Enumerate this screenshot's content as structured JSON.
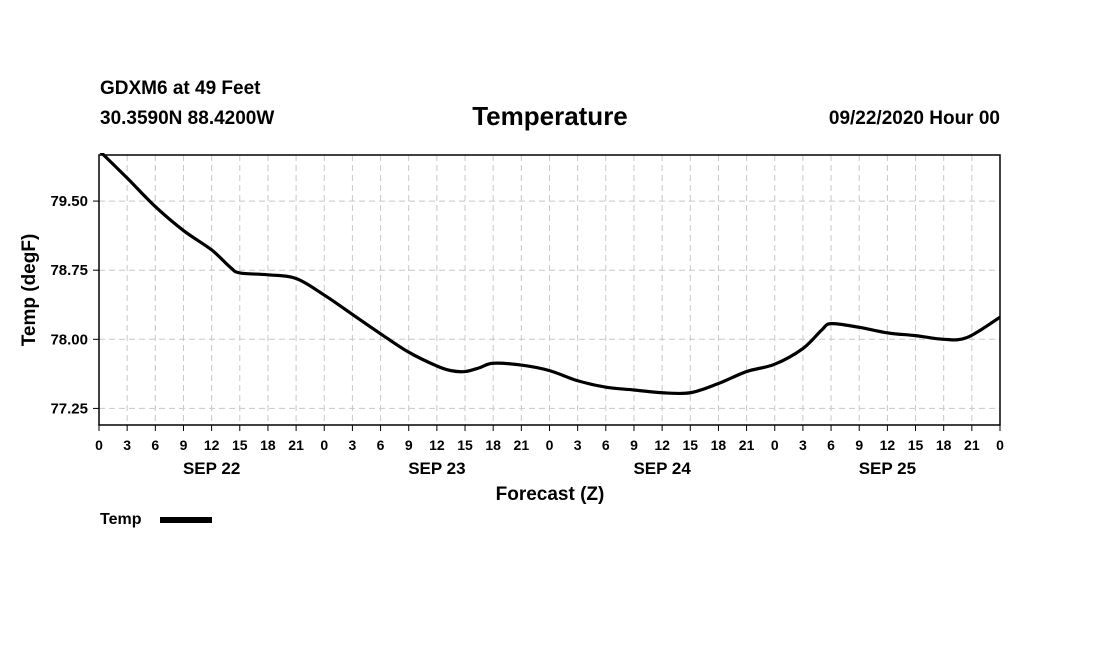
{
  "header": {
    "station": "GDXM6 at 49 Feet",
    "coords": "30.3590N 88.4200W",
    "title": "Temperature",
    "timestamp": "09/22/2020 Hour 00"
  },
  "chart_data": {
    "type": "line",
    "title": "Temperature",
    "xlabel": "Forecast (Z)",
    "ylabel": "Temp (degF)",
    "xlim": [
      0,
      96
    ],
    "ylim": [
      77.07,
      80.0
    ],
    "yticks": [
      79.5,
      78.75,
      78.0,
      77.25
    ],
    "ytick_labels": [
      "79.50",
      "78.75",
      "78.00",
      "77.25"
    ],
    "xticks": [
      0,
      3,
      6,
      9,
      12,
      15,
      18,
      21,
      24,
      27,
      30,
      33,
      36,
      39,
      42,
      45,
      48,
      51,
      54,
      57,
      60,
      63,
      66,
      69,
      72,
      75,
      78,
      81,
      84,
      87,
      90,
      93,
      96
    ],
    "xtick_labels": [
      "0",
      "3",
      "6",
      "9",
      "12",
      "15",
      "18",
      "21",
      "0",
      "3",
      "6",
      "9",
      "12",
      "15",
      "18",
      "21",
      "0",
      "3",
      "6",
      "9",
      "12",
      "15",
      "18",
      "21",
      "0",
      "3",
      "6",
      "9",
      "12",
      "15",
      "18",
      "21",
      "0"
    ],
    "day_labels": [
      {
        "label": "SEP 22",
        "x": 12
      },
      {
        "label": "SEP 23",
        "x": 36
      },
      {
        "label": "SEP 24",
        "x": 60
      },
      {
        "label": "SEP 25",
        "x": 84
      }
    ],
    "grid": true,
    "legend": "bottom-left",
    "series": [
      {
        "name": "Temp",
        "color": "#000000",
        "x": [
          0,
          3,
          6,
          9,
          12,
          14,
          15,
          18,
          21,
          24,
          27,
          30,
          33,
          36,
          37.5,
          39,
          40.5,
          42,
          45,
          48,
          51,
          54,
          57,
          60,
          63,
          66,
          69,
          72,
          75,
          77,
          78,
          81,
          84,
          87,
          90,
          92.5,
          96
        ],
        "y": [
          80.05,
          79.75,
          79.44,
          79.18,
          78.97,
          78.78,
          78.72,
          78.7,
          78.66,
          78.48,
          78.27,
          78.06,
          77.86,
          77.71,
          77.66,
          77.65,
          77.69,
          77.74,
          77.72,
          77.66,
          77.55,
          77.48,
          77.45,
          77.42,
          77.42,
          77.52,
          77.65,
          77.73,
          77.9,
          78.1,
          78.17,
          78.13,
          78.07,
          78.04,
          78.0,
          78.02,
          78.24
        ]
      }
    ]
  }
}
